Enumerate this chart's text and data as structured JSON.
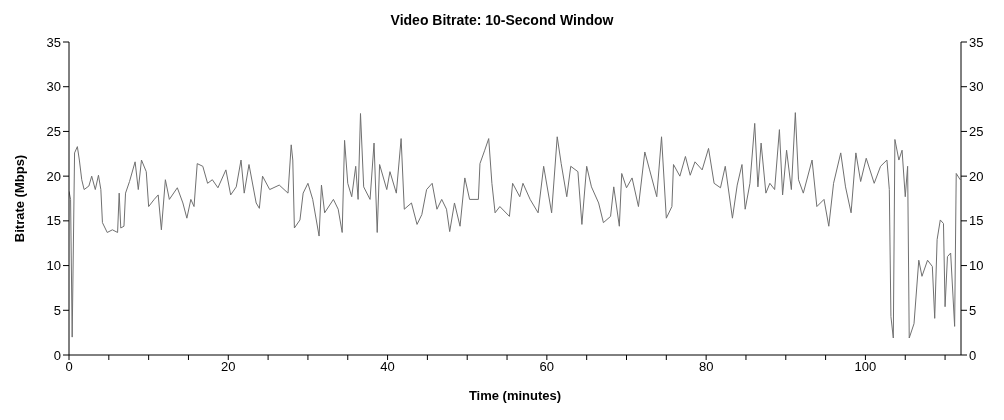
{
  "chart_data": {
    "type": "line",
    "title": "Video Bitrate: 10-Second Window",
    "xlabel": "Time (minutes)",
    "ylabel": "Bitrate (Mbps)",
    "xlim": [
      0,
      112
    ],
    "xticks": [
      0,
      {
        "value": 5,
        "label": null
      },
      {
        "value": 10,
        "label": null
      },
      {
        "value": 15,
        "label": null
      },
      20,
      {
        "value": 25,
        "label": null
      },
      {
        "value": 30,
        "label": null
      },
      {
        "value": 35,
        "label": null
      },
      40,
      {
        "value": 45,
        "label": null
      },
      {
        "value": 50,
        "label": null
      },
      {
        "value": 55,
        "label": null
      },
      60,
      {
        "value": 65,
        "label": null
      },
      {
        "value": 70,
        "label": null
      },
      {
        "value": 75,
        "label": null
      },
      80,
      {
        "value": 85,
        "label": null
      },
      {
        "value": 90,
        "label": null
      },
      {
        "value": 95,
        "label": null
      },
      100,
      {
        "value": 105,
        "label": null
      },
      {
        "value": 110,
        "label": null
      }
    ],
    "ylim": [
      0,
      35
    ],
    "yticks": [
      0,
      5,
      10,
      15,
      20,
      25,
      30,
      35
    ],
    "y2lim": [
      0,
      35
    ],
    "y2ticks": [
      0,
      5,
      10,
      15,
      20,
      25,
      30,
      35
    ],
    "grid": false,
    "legend": false,
    "marker": "none",
    "line_style": "solid",
    "series": [
      {
        "color": "#707070",
        "x": [
          0,
          0.2,
          0.4,
          0.7,
          1.05,
          1.3,
          1.6,
          1.9,
          2.5,
          2.85,
          3.3,
          3.7,
          4.0,
          4.2,
          4.8,
          5.45,
          6.1,
          6.3,
          6.5,
          6.9,
          7.1,
          7.6,
          8.3,
          8.7,
          9.1,
          9.7,
          10,
          10.7,
          11.2,
          11.6,
          12.1,
          12.6,
          13.6,
          14.3,
          14.8,
          15.3,
          15.7,
          16.1,
          16.8,
          17.4,
          18,
          18.7,
          19.7,
          20.3,
          21,
          21.6,
          22,
          22.6,
          23.5,
          23.9,
          24.3,
          25.2,
          26.4,
          27.5,
          27.9,
          28.1,
          28.3,
          29,
          29.4,
          30,
          30.6,
          31.4,
          31.7,
          32.1,
          33.2,
          33.8,
          34.3,
          34.6,
          35,
          35.5,
          36,
          36.3,
          36.6,
          37,
          37.8,
          38.3,
          38.7,
          39,
          39.9,
          40.3,
          41.1,
          41.7,
          42.1,
          43,
          43.7,
          44.3,
          44.9,
          45.6,
          46.2,
          46.8,
          47.4,
          47.8,
          48.4,
          49.1,
          49.7,
          50.3,
          51.4,
          51.6,
          52.2,
          52.7,
          53.1,
          53.5,
          54.1,
          55.3,
          55.7,
          56.6,
          57,
          57.9,
          58.9,
          59.6,
          60.6,
          61.3,
          61.8,
          62.5,
          63,
          63.9,
          64.4,
          65,
          65.6,
          66.5,
          67.1,
          68,
          68.4,
          69.1,
          69.4,
          70,
          70.7,
          71.5,
          72.3,
          72.9,
          73.8,
          74.4,
          75,
          75.7,
          75.9,
          76.7,
          77.4,
          78,
          78.6,
          79.5,
          80.3,
          81,
          81.8,
          82.4,
          83.3,
          83.9,
          84.5,
          84.9,
          85.5,
          86.1,
          86.5,
          86.9,
          87.5,
          88,
          88.6,
          89.2,
          89.6,
          90.1,
          90.7,
          91.2,
          91.6,
          92.2,
          93.3,
          93.9,
          94.8,
          95.4,
          96,
          96.9,
          97.5,
          98.2,
          98.8,
          99.4,
          100.1,
          101.1,
          101.9,
          102.7,
          103,
          103.2,
          103.5,
          103.7,
          104.2,
          104.6,
          105,
          105.3,
          105.5,
          106.1,
          106.7,
          107.1,
          107.8,
          108.4,
          108.7,
          109,
          109.4,
          109.8,
          110,
          110.3,
          110.7,
          111.2,
          111.4,
          111.9
        ],
        "values": [
          18.3,
          17.4,
          2,
          22.6,
          23.3,
          21.8,
          19.6,
          18.5,
          18.9,
          20,
          18.5,
          20.1,
          18.5,
          14.8,
          13.7,
          14,
          13.7,
          18.1,
          14.2,
          14.4,
          18.1,
          19.4,
          21.6,
          18.5,
          21.8,
          20.5,
          16.6,
          17.4,
          17.9,
          14,
          19.6,
          17.4,
          18.7,
          17,
          15.3,
          17.4,
          16.6,
          21.4,
          21.1,
          19.2,
          19.6,
          18.7,
          20.7,
          17.9,
          18.8,
          21.8,
          18.1,
          21.3,
          17,
          16.4,
          20,
          18.5,
          19,
          18.1,
          23.5,
          21.8,
          14.2,
          15.1,
          18.1,
          19.2,
          17.4,
          13.3,
          19,
          15.9,
          17.4,
          16.3,
          13.7,
          24,
          19.2,
          17.7,
          21.1,
          17.4,
          27,
          18.8,
          17.4,
          23.7,
          13.7,
          21.3,
          18.5,
          20.5,
          18.1,
          24.2,
          16.3,
          17,
          14.6,
          15.7,
          18.5,
          19.2,
          16.3,
          17.4,
          16.3,
          13.8,
          17,
          14.4,
          19.8,
          17.4,
          17.4,
          21.4,
          22.9,
          24.2,
          19.2,
          15.9,
          16.6,
          15.5,
          19.2,
          17.7,
          19.2,
          17.4,
          15.9,
          21.1,
          15.9,
          24.4,
          21.4,
          17.7,
          21.1,
          20.5,
          14.6,
          21.1,
          18.8,
          17,
          14.8,
          15.5,
          18.8,
          14.4,
          20.3,
          18.7,
          19.8,
          16.6,
          22.7,
          20.7,
          17.7,
          24.4,
          15.3,
          16.6,
          21.3,
          20,
          22.2,
          20.1,
          21.6,
          20.7,
          23.1,
          19.2,
          18.7,
          21.1,
          15.3,
          19,
          21.3,
          16.3,
          19.2,
          25.9,
          18.8,
          23.7,
          18.1,
          19.2,
          18.5,
          25.2,
          17.9,
          22.9,
          18.5,
          27.1,
          19.6,
          18.1,
          21.8,
          16.6,
          17.4,
          14.4,
          19.2,
          22.6,
          18.8,
          15.9,
          22.6,
          19.4,
          22,
          19.2,
          21.1,
          21.8,
          18.5,
          4.3,
          1.9,
          24.1,
          21.8,
          22.9,
          17.7,
          21.1,
          1.9,
          3.5,
          10.6,
          8.8,
          10.6,
          9.9,
          4.1,
          12.9,
          15.1,
          14.7,
          5.4,
          11,
          11.4,
          3.2,
          20.3,
          19.6
        ]
      }
    ]
  }
}
